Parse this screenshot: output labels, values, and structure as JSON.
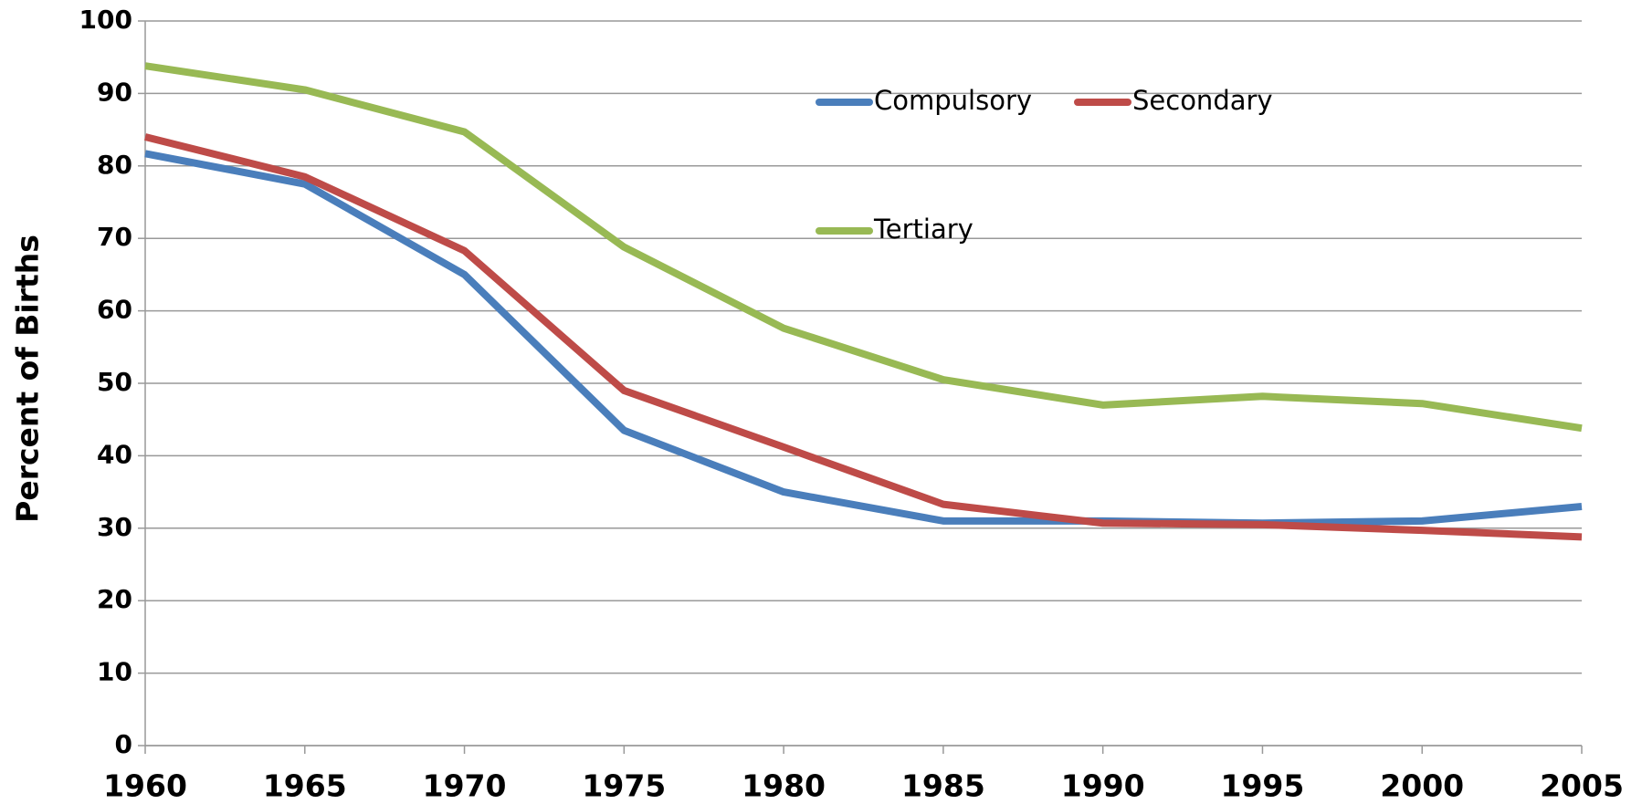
{
  "chart_data": {
    "type": "line",
    "y_label": "Percent of Births",
    "x": [
      1960,
      1965,
      1970,
      1975,
      1980,
      1985,
      1990,
      1995,
      2000,
      2005
    ],
    "series": [
      {
        "name": "Compulsory",
        "color": "#4a7ebb",
        "values": [
          81.7,
          77.5,
          65,
          43.5,
          35,
          31,
          31,
          30.7,
          31,
          33
        ]
      },
      {
        "name": "Secondary",
        "color": "#be4b48",
        "values": [
          84,
          78.5,
          68.3,
          49,
          41.2,
          33.3,
          30.7,
          30.5,
          29.7,
          28.8
        ]
      },
      {
        "name": "Tertiary",
        "color": "#98b954",
        "values": [
          93.8,
          90.5,
          84.7,
          68.8,
          57.6,
          50.5,
          47,
          48.2,
          47.2,
          43.8
        ]
      }
    ],
    "xlim": [
      1960,
      2005
    ],
    "xticks": [
      1960,
      1965,
      1970,
      1975,
      1980,
      1985,
      1990,
      1995,
      2000,
      2005
    ],
    "ylim": [
      0,
      100
    ],
    "yticks": [
      0,
      10,
      20,
      30,
      40,
      50,
      60,
      70,
      80,
      90,
      100
    ],
    "grid": true,
    "legend": "top"
  }
}
